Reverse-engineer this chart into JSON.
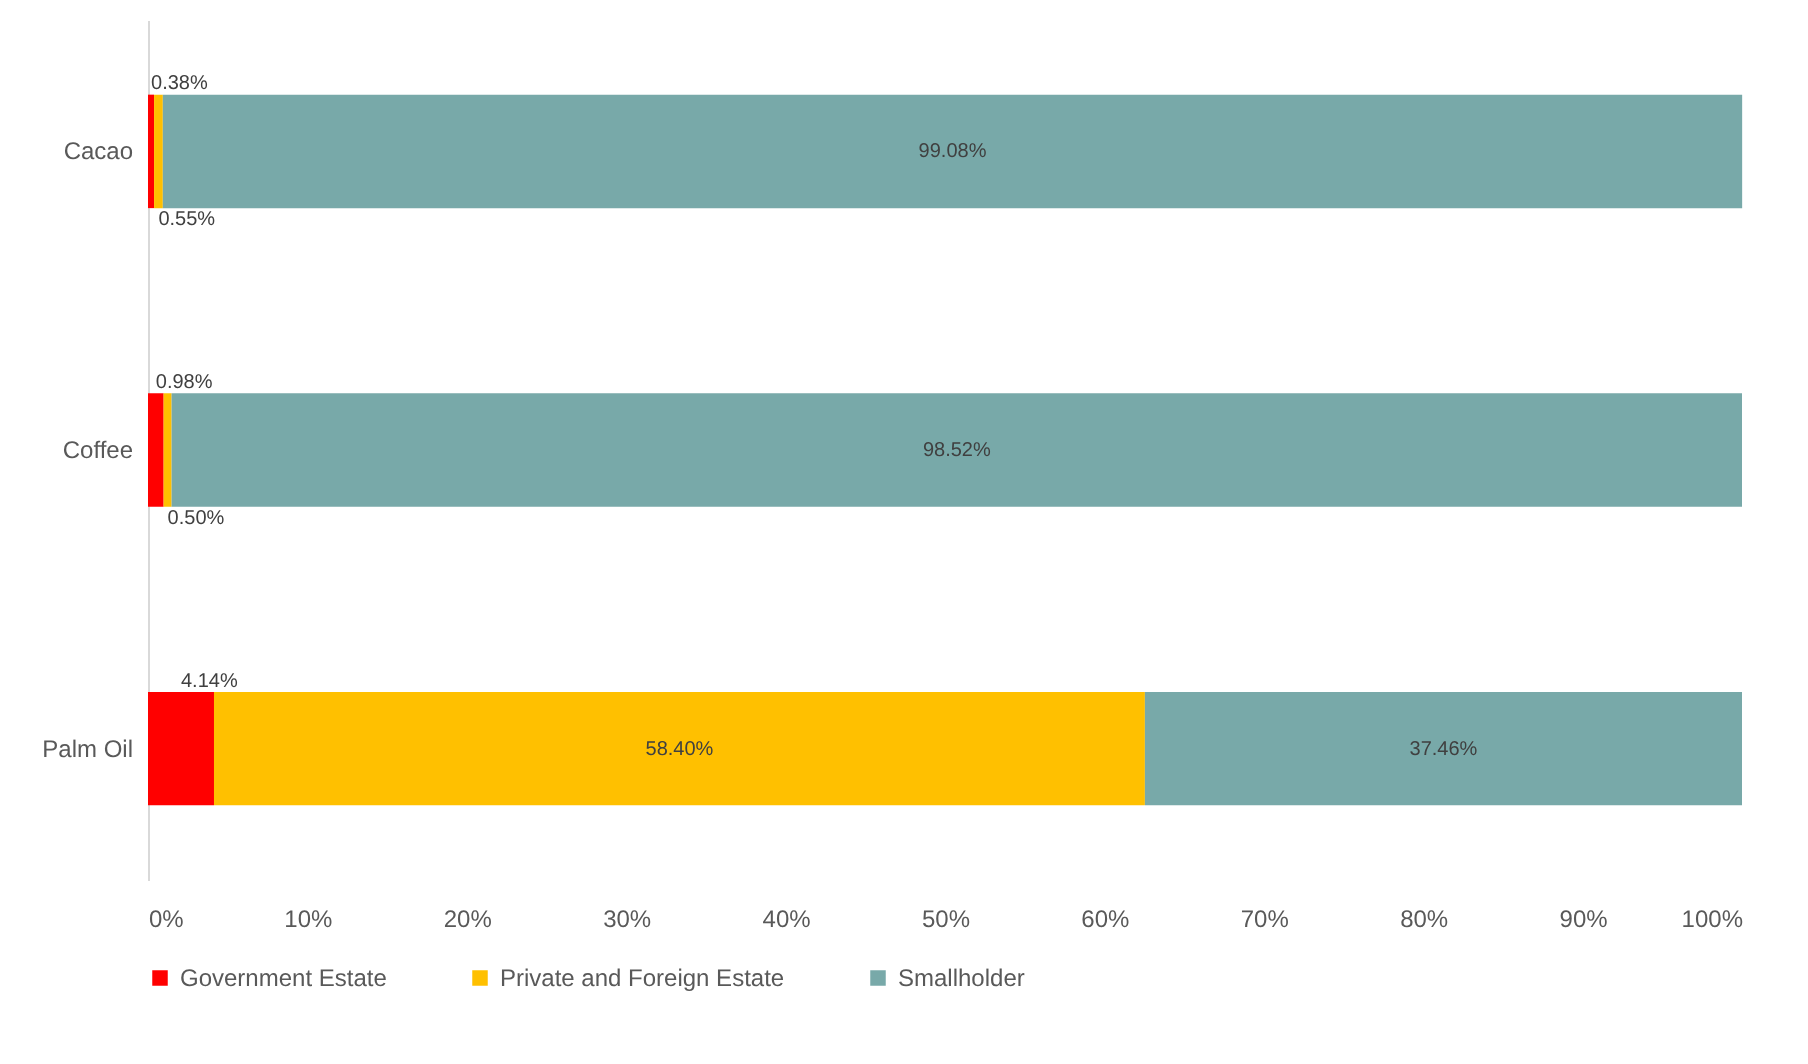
{
  "chart_data": {
    "type": "bar",
    "orientation": "horizontal",
    "stacked": true,
    "categories": [
      "Cacao",
      "Coffee",
      "Palm Oil"
    ],
    "series": [
      {
        "name": "Government Estate",
        "color": "#ff0000",
        "values": [
          0.38,
          0.98,
          4.14
        ],
        "value_labels": [
          "0.38%",
          "0.98%",
          "4.14%"
        ]
      },
      {
        "name": "Private and Foreign Estate",
        "color": "#ffc000",
        "values": [
          0.55,
          0.5,
          58.4
        ],
        "value_labels": [
          "0.55%",
          "0.50%",
          "58.40%"
        ]
      },
      {
        "name": "Smallholder",
        "color": "#78a9a9",
        "values": [
          99.08,
          98.52,
          37.46
        ],
        "value_labels": [
          "99.08%",
          "98.52%",
          "37.46%"
        ]
      }
    ],
    "xlim": [
      0,
      100
    ],
    "xticks": [
      {
        "value": 0,
        "label": "0%"
      },
      {
        "value": 10,
        "label": "10%"
      },
      {
        "value": 20,
        "label": "20%"
      },
      {
        "value": 30,
        "label": "30%"
      },
      {
        "value": 40,
        "label": "40%"
      },
      {
        "value": 50,
        "label": "50%"
      },
      {
        "value": 60,
        "label": "60%"
      },
      {
        "value": 70,
        "label": "70%"
      },
      {
        "value": 80,
        "label": "80%"
      },
      {
        "value": 90,
        "label": "90%"
      },
      {
        "value": 100,
        "label": "100%"
      }
    ],
    "grid": false,
    "legend": "bottom"
  }
}
